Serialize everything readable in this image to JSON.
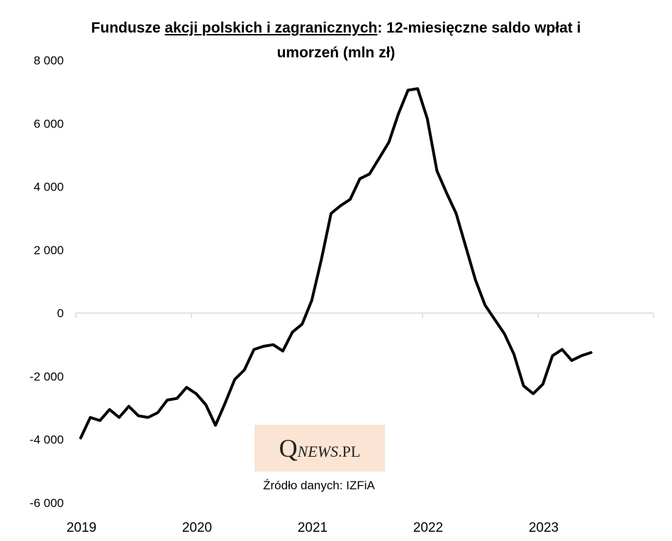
{
  "title": {
    "prefix": "Fundusze ",
    "underlined": "akcji polskich i zagranicznych",
    "suffix": ": 12-miesięczne saldo wpłat i",
    "line2": "umorzeń (mln zł)"
  },
  "logo": {
    "q": "Q",
    "news": "NEWS",
    "pl": ".PL"
  },
  "source": "Źródło danych: IZFiA",
  "chart_data": {
    "type": "line",
    "title": "Fundusze akcji polskich i zagranicznych: 12-miesięczne saldo wpłat i umorzeń (mln zł)",
    "xlabel": "",
    "ylabel": "",
    "ylim": [
      -6000,
      8000
    ],
    "yticks": [
      8000,
      6000,
      4000,
      2000,
      0,
      -2000,
      -4000,
      -6000
    ],
    "ytick_labels": [
      "8 000",
      "6 000",
      "4 000",
      "2 000",
      "0",
      "-2 000",
      "-4 000",
      "-6 000"
    ],
    "xticks": [
      "2019",
      "2020",
      "2021",
      "2022",
      "2023"
    ],
    "grid": false,
    "line_color": "#000000",
    "series": [
      {
        "x": [
          "2019-01",
          "2019-02",
          "2019-03",
          "2019-04",
          "2019-05",
          "2019-06",
          "2019-07",
          "2019-08",
          "2019-09",
          "2019-10",
          "2019-11",
          "2019-12",
          "2020-01",
          "2020-02",
          "2020-03",
          "2020-04",
          "2020-05",
          "2020-06",
          "2020-07",
          "2020-08",
          "2020-09",
          "2020-10",
          "2020-11",
          "2020-12",
          "2021-01",
          "2021-02",
          "2021-03",
          "2021-04",
          "2021-05",
          "2021-06",
          "2021-07",
          "2021-08",
          "2021-09",
          "2021-10",
          "2021-11",
          "2021-12",
          "2022-01",
          "2022-02",
          "2022-03",
          "2022-04",
          "2022-05",
          "2022-06",
          "2022-07",
          "2022-08",
          "2022-09",
          "2022-10",
          "2022-11",
          "2022-12",
          "2023-01",
          "2023-02",
          "2023-03",
          "2023-04",
          "2023-05",
          "2023-06"
        ],
        "values": [
          -3950,
          -3300,
          -3400,
          -3050,
          -3300,
          -2950,
          -3250,
          -3300,
          -3150,
          -2750,
          -2700,
          -2350,
          -2550,
          -2900,
          -3550,
          -2850,
          -2100,
          -1800,
          -1150,
          -1050,
          -1000,
          -1200,
          -600,
          -350,
          400,
          1700,
          3150,
          3400,
          3600,
          4250,
          4400,
          4900,
          5400,
          6300,
          7050,
          7100,
          6150,
          4500,
          3800,
          3150,
          2100,
          1050,
          250,
          -200,
          -650,
          -1300,
          -2300,
          -2550,
          -2250,
          -1350,
          -1150,
          -1500,
          -1350,
          -1250
        ]
      }
    ]
  }
}
